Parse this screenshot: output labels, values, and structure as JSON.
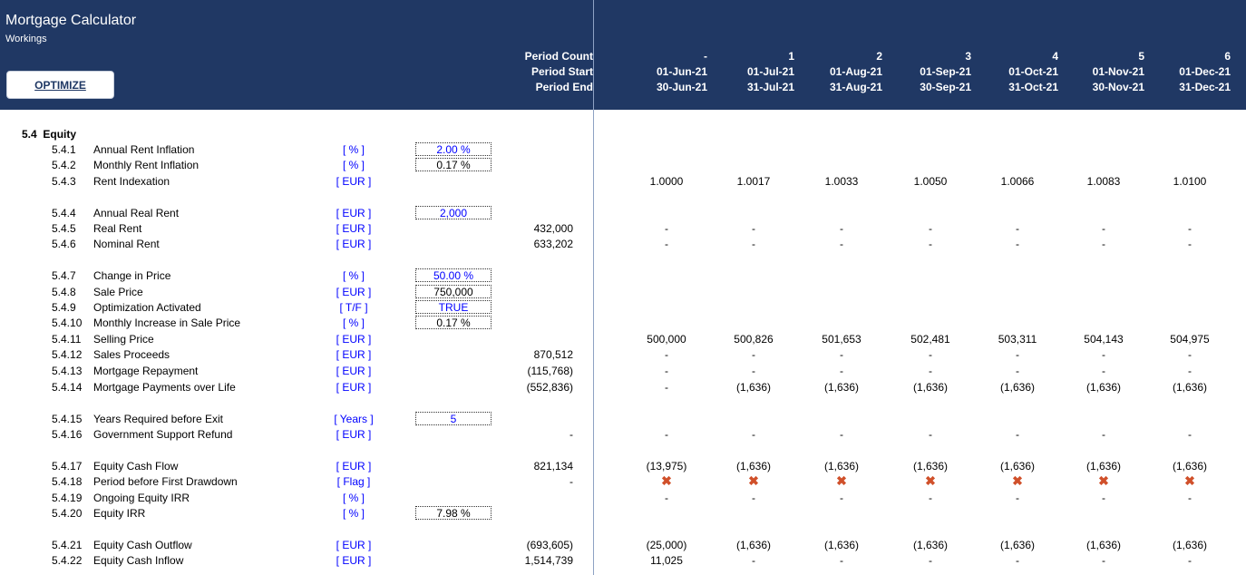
{
  "header": {
    "title": "Mortgage Calculator",
    "subtitle": "Workings",
    "optimize_label": "OPTIMIZE",
    "period_count_label": "Period Count",
    "period_start_label": "Period Start",
    "period_end_label": "Period End",
    "periods": [
      {
        "count": "-",
        "start": "01-Jun-21",
        "end": "30-Jun-21"
      },
      {
        "count": "1",
        "start": "01-Jul-21",
        "end": "31-Jul-21"
      },
      {
        "count": "2",
        "start": "01-Aug-21",
        "end": "31-Aug-21"
      },
      {
        "count": "3",
        "start": "01-Sep-21",
        "end": "30-Sep-21"
      },
      {
        "count": "4",
        "start": "01-Oct-21",
        "end": "31-Oct-21"
      },
      {
        "count": "5",
        "start": "01-Nov-21",
        "end": "30-Nov-21"
      },
      {
        "count": "6",
        "start": "01-Dec-21",
        "end": "31-Dec-21"
      }
    ]
  },
  "section": {
    "number": "5.4",
    "title": "Equity"
  },
  "rows": [
    {
      "num": "5.4.1",
      "label": "Annual Rent Inflation",
      "unit": "[ % ]",
      "input": "2.00 %",
      "input_blue": true,
      "total": "",
      "values": []
    },
    {
      "num": "5.4.2",
      "label": "Monthly Rent Inflation",
      "unit": "[ % ]",
      "input": "0.17 %",
      "input_blue": false,
      "total": "",
      "values": []
    },
    {
      "num": "5.4.3",
      "label": "Rent Indexation",
      "unit": "[ EUR ]",
      "input": "",
      "total": "",
      "values": [
        "1.0000",
        "1.0017",
        "1.0033",
        "1.0050",
        "1.0066",
        "1.0083",
        "1.0100"
      ]
    },
    {
      "num": "5.4.4",
      "label": "Annual Real Rent",
      "unit": "[ EUR ]",
      "input": "2,000",
      "input_blue": true,
      "total": "",
      "values": []
    },
    {
      "num": "5.4.5",
      "label": "Real Rent",
      "unit": "[ EUR ]",
      "input": "",
      "total": "432,000",
      "values": [
        "-",
        "-",
        "-",
        "-",
        "-",
        "-",
        "-"
      ]
    },
    {
      "num": "5.4.6",
      "label": "Nominal Rent",
      "unit": "[ EUR ]",
      "input": "",
      "total": "633,202",
      "values": [
        "-",
        "-",
        "-",
        "-",
        "-",
        "-",
        "-"
      ]
    },
    {
      "num": "5.4.7",
      "label": "Change in Price",
      "unit": "[ % ]",
      "input": "50.00 %",
      "input_blue": true,
      "total": "",
      "values": []
    },
    {
      "num": "5.4.8",
      "label": "Sale Price",
      "unit": "[ EUR ]",
      "input": "750,000",
      "input_blue": false,
      "total": "",
      "values": []
    },
    {
      "num": "5.4.9",
      "label": "Optimization Activated",
      "unit": "[ T/F ]",
      "input": "TRUE",
      "input_blue": true,
      "total": "",
      "values": []
    },
    {
      "num": "5.4.10",
      "label": "Monthly Increase in Sale Price",
      "unit": "[ % ]",
      "input": "0.17 %",
      "input_blue": false,
      "total": "",
      "values": []
    },
    {
      "num": "5.4.11",
      "label": "Selling Price",
      "unit": "[ EUR ]",
      "input": "",
      "total": "",
      "values": [
        "500,000",
        "500,826",
        "501,653",
        "502,481",
        "503,311",
        "504,143",
        "504,975"
      ]
    },
    {
      "num": "5.4.12",
      "label": "Sales Proceeds",
      "unit": "[ EUR ]",
      "input": "",
      "total": "870,512",
      "values": [
        "-",
        "-",
        "-",
        "-",
        "-",
        "-",
        "-"
      ]
    },
    {
      "num": "5.4.13",
      "label": "Mortgage Repayment",
      "unit": "[ EUR ]",
      "input": "",
      "total": "(115,768)",
      "values": [
        "-",
        "-",
        "-",
        "-",
        "-",
        "-",
        "-"
      ]
    },
    {
      "num": "5.4.14",
      "label": "Mortgage Payments over Life",
      "unit": "[ EUR ]",
      "input": "",
      "total": "(552,836)",
      "values": [
        "-",
        "(1,636)",
        "(1,636)",
        "(1,636)",
        "(1,636)",
        "(1,636)",
        "(1,636)"
      ]
    },
    {
      "num": "5.4.15",
      "label": "Years Required before Exit",
      "unit": "[ Years ]",
      "input": "5",
      "input_blue": true,
      "total": "",
      "values": []
    },
    {
      "num": "5.4.16",
      "label": "Government Support Refund",
      "unit": "[ EUR ]",
      "input": "",
      "total": "-",
      "values": [
        "-",
        "-",
        "-",
        "-",
        "-",
        "-",
        "-"
      ]
    },
    {
      "num": "5.4.17",
      "label": "Equity Cash Flow",
      "unit": "[ EUR ]",
      "input": "",
      "total": "821,134",
      "values": [
        "(13,975)",
        "(1,636)",
        "(1,636)",
        "(1,636)",
        "(1,636)",
        "(1,636)",
        "(1,636)"
      ]
    },
    {
      "num": "5.4.18",
      "label": "Period before First Drawdown",
      "unit": "[ Flag ]",
      "input": "",
      "total": "-",
      "values": [
        "✖",
        "✖",
        "✖",
        "✖",
        "✖",
        "✖",
        "✖"
      ]
    },
    {
      "num": "5.4.19",
      "label": "Ongoing Equity IRR",
      "unit": "[ % ]",
      "input": "",
      "total": "",
      "values": [
        "-",
        "-",
        "-",
        "-",
        "-",
        "-",
        "-"
      ]
    },
    {
      "num": "5.4.20",
      "label": "Equity IRR",
      "unit": "[ % ]",
      "input": "7.98 %",
      "input_blue": false,
      "total": "",
      "values": []
    },
    {
      "num": "5.4.21",
      "label": "Equity Cash Outflow",
      "unit": "[ EUR ]",
      "input": "",
      "total": "(693,605)",
      "values": [
        "(25,000)",
        "(1,636)",
        "(1,636)",
        "(1,636)",
        "(1,636)",
        "(1,636)",
        "(1,636)"
      ]
    },
    {
      "num": "5.4.22",
      "label": "Equity Cash Inflow",
      "unit": "[ EUR ]",
      "input": "",
      "total": "1,514,739",
      "values": [
        "11,025",
        "-",
        "-",
        "-",
        "-",
        "-",
        "-"
      ]
    }
  ]
}
